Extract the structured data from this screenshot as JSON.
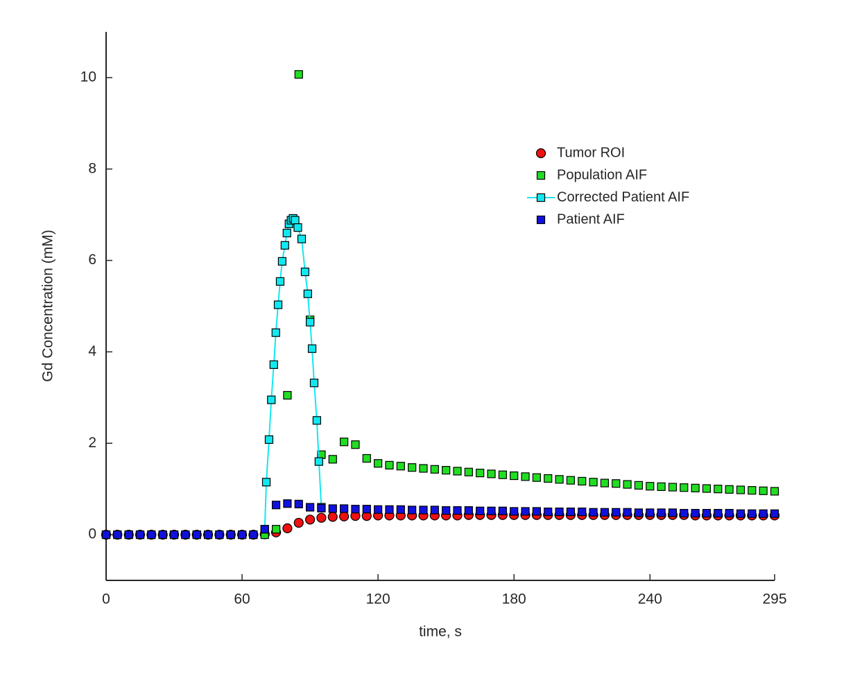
{
  "chart_data": {
    "type": "scatter",
    "x_label": "time, s",
    "y_label": "Gd Concentration (mM)",
    "x": [
      0,
      5,
      10,
      15,
      20,
      25,
      30,
      35,
      40,
      45,
      50,
      55,
      60,
      65,
      70,
      75,
      80,
      85,
      90,
      95,
      100,
      105,
      110,
      115,
      120,
      125,
      130,
      135,
      140,
      145,
      150,
      155,
      160,
      165,
      170,
      175,
      180,
      185,
      190,
      195,
      200,
      205,
      210,
      215,
      220,
      225,
      230,
      235,
      240,
      245,
      250,
      255,
      260,
      265,
      270,
      275,
      280,
      285,
      290,
      295
    ],
    "xlim": [
      0,
      295
    ],
    "xticks": [
      0,
      60,
      120,
      180,
      240,
      295
    ],
    "ylim": [
      -1,
      11
    ],
    "yticks": [
      0,
      2,
      4,
      6,
      8,
      10
    ],
    "grid": false,
    "legend_position": "northeast",
    "series": [
      {
        "name": "Tumor ROI",
        "color": "#ee1111",
        "marker": "circle",
        "line": false,
        "values": [
          0,
          0,
          0,
          0,
          0,
          0,
          0,
          0,
          0,
          0,
          0,
          0,
          0,
          0,
          0.01,
          0.05,
          0.14,
          0.26,
          0.33,
          0.37,
          0.39,
          0.4,
          0.41,
          0.41,
          0.42,
          0.42,
          0.42,
          0.42,
          0.42,
          0.42,
          0.42,
          0.42,
          0.43,
          0.43,
          0.43,
          0.43,
          0.43,
          0.43,
          0.43,
          0.43,
          0.43,
          0.43,
          0.43,
          0.43,
          0.43,
          0.43,
          0.43,
          0.43,
          0.43,
          0.43,
          0.43,
          0.43,
          0.42,
          0.42,
          0.42,
          0.42,
          0.42,
          0.42,
          0.42,
          0.42
        ]
      },
      {
        "name": "Population AIF",
        "color": "#22dd22",
        "marker": "square",
        "line": false,
        "values": [
          0,
          0,
          0,
          0,
          0,
          0,
          0,
          0,
          0,
          0,
          0,
          0,
          0,
          0,
          0,
          0.12,
          3.05,
          10.07,
          4.7,
          1.75,
          1.65,
          2.03,
          1.97,
          1.67,
          1.56,
          1.52,
          1.5,
          1.47,
          1.45,
          1.43,
          1.41,
          1.39,
          1.37,
          1.35,
          1.33,
          1.31,
          1.29,
          1.27,
          1.25,
          1.23,
          1.21,
          1.19,
          1.17,
          1.15,
          1.13,
          1.12,
          1.1,
          1.08,
          1.06,
          1.05,
          1.04,
          1.03,
          1.02,
          1.01,
          1.0,
          0.99,
          0.98,
          0.97,
          0.96,
          0.95
        ]
      },
      {
        "name": "Corrected Patient AIF",
        "color": "#11e8f0",
        "marker": "square",
        "line": true,
        "x": [
          70,
          70.7,
          71.9,
          72.9,
          74,
          74.9,
          75.9,
          76.8,
          77.7,
          78.9,
          79.8,
          80.7,
          81.6,
          82.5,
          83.4,
          84.6,
          86.3,
          87.8,
          89,
          90,
          90.9,
          91.8,
          93,
          93.9,
          95
        ],
        "values": [
          0.12,
          1.15,
          2.08,
          2.95,
          3.72,
          4.42,
          5.03,
          5.54,
          5.98,
          6.33,
          6.6,
          6.8,
          6.88,
          6.92,
          6.88,
          6.72,
          6.47,
          5.75,
          5.27,
          4.65,
          4.07,
          3.32,
          2.5,
          1.6,
          0.6
        ]
      },
      {
        "name": "Patient AIF",
        "color": "#1111dd",
        "marker": "square",
        "line": false,
        "values": [
          0,
          0,
          0,
          0,
          0,
          0,
          0,
          0,
          0,
          0,
          0,
          0,
          0,
          0,
          0.12,
          0.65,
          0.68,
          0.67,
          0.6,
          0.58,
          0.57,
          0.57,
          0.56,
          0.56,
          0.55,
          0.55,
          0.55,
          0.54,
          0.54,
          0.54,
          0.53,
          0.53,
          0.53,
          0.52,
          0.52,
          0.52,
          0.51,
          0.51,
          0.51,
          0.5,
          0.5,
          0.5,
          0.5,
          0.49,
          0.49,
          0.49,
          0.49,
          0.48,
          0.48,
          0.48,
          0.48,
          0.47,
          0.47,
          0.47,
          0.47,
          0.47,
          0.46,
          0.46,
          0.46,
          0.46
        ]
      }
    ]
  }
}
